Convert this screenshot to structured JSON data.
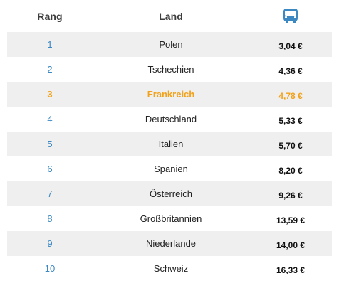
{
  "header": {
    "rank_label": "Rang",
    "country_label": "Land",
    "price_icon": "bus-icon"
  },
  "colors": {
    "rank_blue": "#3b88c3",
    "highlight_orange": "#f2a11a",
    "stripe_gray": "#efefef",
    "icon_blue": "#3b88c3"
  },
  "rows": [
    {
      "rank": "1",
      "country": "Polen",
      "price": "3,04 €"
    },
    {
      "rank": "2",
      "country": "Tschechien",
      "price": "4,36 €"
    },
    {
      "rank": "3",
      "country": "Frankreich",
      "price": "4,78 €"
    },
    {
      "rank": "4",
      "country": "Deutschland",
      "price": "5,33 €"
    },
    {
      "rank": "5",
      "country": "Italien",
      "price": "5,70 €"
    },
    {
      "rank": "6",
      "country": "Spanien",
      "price": "8,20 €"
    },
    {
      "rank": "7",
      "country": "Österreich",
      "price": "9,26 €"
    },
    {
      "rank": "8",
      "country": "Großbritannien",
      "price": "13,59 €"
    },
    {
      "rank": "9",
      "country": "Niederlande",
      "price": "14,00 €"
    },
    {
      "rank": "10",
      "country": "Schweiz",
      "price": "16,33 €"
    }
  ]
}
